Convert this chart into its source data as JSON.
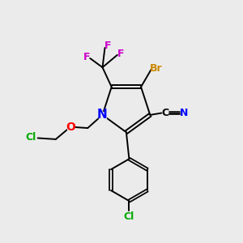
{
  "bg_color": "#ebebeb",
  "bond_color": "#000000",
  "colors": {
    "N": "#0000ff",
    "O": "#ff0000",
    "Cl_green": "#00aa00",
    "Br": "#cc8800",
    "F": "#cc00cc",
    "CN_C": "#000000",
    "CN_N": "#0000ff"
  },
  "font_size": 9,
  "lw": 1.4
}
